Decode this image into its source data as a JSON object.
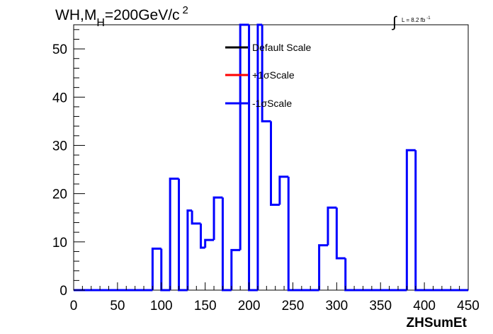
{
  "chart_data": {
    "type": "step",
    "title_parts": {
      "process": "WH,M",
      "sub": "H",
      "mass": "=200GeV/c",
      "sup": "2"
    },
    "lumi_label": {
      "integral": "∫",
      "text": "L = 8.2 fb",
      "sup": "-1"
    },
    "xlabel": "ZHSumEt",
    "ylabel": "",
    "xlim": [
      0,
      450
    ],
    "ylim": [
      0,
      55
    ],
    "xticks": [
      0,
      50,
      100,
      150,
      200,
      250,
      300,
      350,
      400,
      450
    ],
    "yticks": [
      0,
      10,
      20,
      30,
      40,
      50
    ],
    "grid": false,
    "legend_position": "top-center",
    "bins": [
      {
        "x0": 0,
        "x1": 90,
        "y": 0
      },
      {
        "x0": 90,
        "x1": 100,
        "y": 8.6
      },
      {
        "x0": 100,
        "x1": 110,
        "y": 0
      },
      {
        "x0": 110,
        "x1": 120,
        "y": 23.1
      },
      {
        "x0": 120,
        "x1": 130,
        "y": 0
      },
      {
        "x0": 130,
        "x1": 135,
        "y": 16.5
      },
      {
        "x0": 135,
        "x1": 145,
        "y": 13.8
      },
      {
        "x0": 145,
        "x1": 150,
        "y": 8.8
      },
      {
        "x0": 150,
        "x1": 160,
        "y": 10.4
      },
      {
        "x0": 160,
        "x1": 170,
        "y": 19.2
      },
      {
        "x0": 170,
        "x1": 180,
        "y": 0
      },
      {
        "x0": 180,
        "x1": 190,
        "y": 8.3
      },
      {
        "x0": 190,
        "x1": 200,
        "y": 55
      },
      {
        "x0": 200,
        "x1": 210,
        "y": 0
      },
      {
        "x0": 210,
        "x1": 215,
        "y": 55
      },
      {
        "x0": 215,
        "x1": 225,
        "y": 35.0
      },
      {
        "x0": 225,
        "x1": 235,
        "y": 17.7
      },
      {
        "x0": 235,
        "x1": 245,
        "y": 23.5
      },
      {
        "x0": 245,
        "x1": 280,
        "y": 0
      },
      {
        "x0": 280,
        "x1": 290,
        "y": 9.3
      },
      {
        "x0": 290,
        "x1": 300,
        "y": 17.1
      },
      {
        "x0": 300,
        "x1": 310,
        "y": 6.6
      },
      {
        "x0": 310,
        "x1": 380,
        "y": 0
      },
      {
        "x0": 380,
        "x1": 390,
        "y": 29.0
      },
      {
        "x0": 390,
        "x1": 450,
        "y": 0
      }
    ],
    "series": [
      {
        "name": "Default Scale",
        "color": "#000000",
        "drawn": false
      },
      {
        "name": "+1σScale",
        "color": "#ff0000",
        "drawn": false
      },
      {
        "name": "-1σScale",
        "color": "#0000ff",
        "drawn": true
      }
    ]
  }
}
